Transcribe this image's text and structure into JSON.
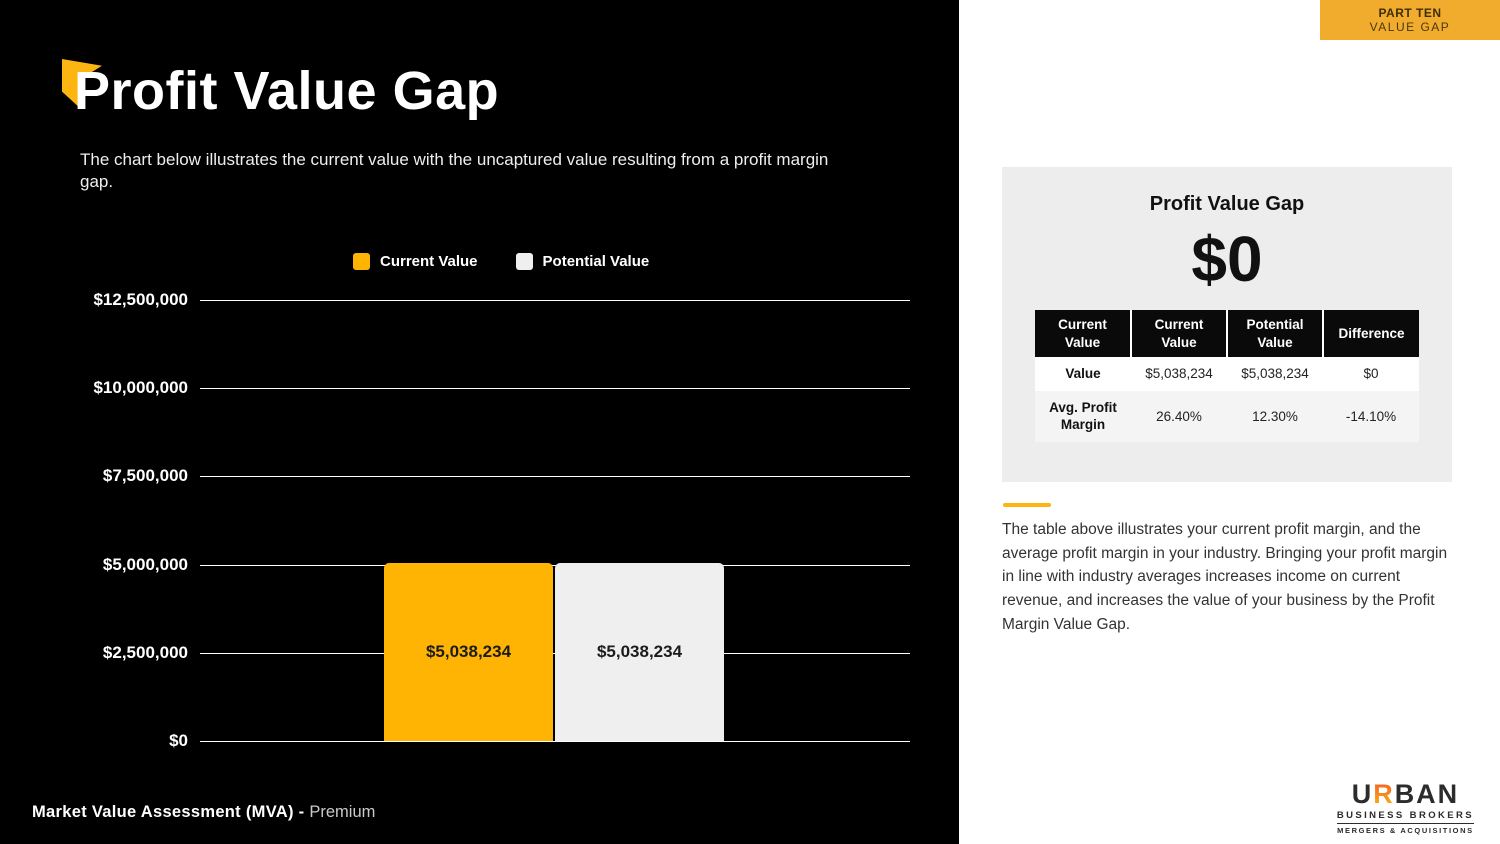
{
  "left_panel": {
    "title": "Profit Value Gap",
    "subtitle": "The chart below illustrates the current value with the uncaptured value resulting from a profit margin gap.",
    "footer_bold": "Market Value Assessment (MVA) - ",
    "footer_light": "Premium"
  },
  "chart_data": {
    "type": "bar",
    "title": "",
    "xlabel": "",
    "ylabel": "",
    "ylim": [
      0,
      12500000
    ],
    "grid": true,
    "legend_position": "top",
    "categories": [
      "Current Value",
      "Potential Value"
    ],
    "series": [
      {
        "name": "Current Value",
        "value": 5038234,
        "label": "$5,038,234",
        "color": "#FFB404"
      },
      {
        "name": "Potential Value",
        "value": 5038234,
        "label": "$5,038,234",
        "color": "#EFEFEF"
      }
    ],
    "y_ticks": [
      {
        "value": 12500000,
        "label": "$12,500,000"
      },
      {
        "value": 10000000,
        "label": "$10,000,000"
      },
      {
        "value": 7500000,
        "label": "$7,500,000"
      },
      {
        "value": 5000000,
        "label": "$5,000,000"
      },
      {
        "value": 2500000,
        "label": "$2,500,000"
      },
      {
        "value": 0,
        "label": "$0"
      }
    ]
  },
  "badge": {
    "part": "PART TEN",
    "section": "VALUE GAP"
  },
  "summary": {
    "card_title": "Profit Value Gap",
    "gap_value": "$0",
    "table": {
      "headers": [
        "Current Value",
        "Current Value",
        "Potential Value",
        "Difference"
      ],
      "rows": [
        {
          "label": "Value",
          "cells": [
            "$5,038,234",
            "$5,038,234",
            "$0"
          ]
        },
        {
          "label": "Avg. Profit Margin",
          "cells": [
            "26.40%",
            "12.30%",
            "-14.10%"
          ]
        }
      ]
    },
    "description": "The table above illustrates your current profit margin, and the average profit margin in your industry. Bringing your profit margin in line with industry averages increases income on current revenue, and increases the value of your business by the Profit Margin Value Gap."
  },
  "logo": {
    "brand_u": "U",
    "brand_r": "R",
    "brand_rest": "BAN",
    "sub": "BUSINESS BROKERS",
    "tagline": "MERGERS & ACQUISITIONS"
  },
  "colors": {
    "accent_yellow": "#FDB512",
    "bar_current": "#FFB404",
    "bar_potential": "#EFEFEF",
    "badge_bg": "#F1AB2D",
    "card_bg": "#EDEDED",
    "table_header_bg": "#0A0A0A"
  }
}
